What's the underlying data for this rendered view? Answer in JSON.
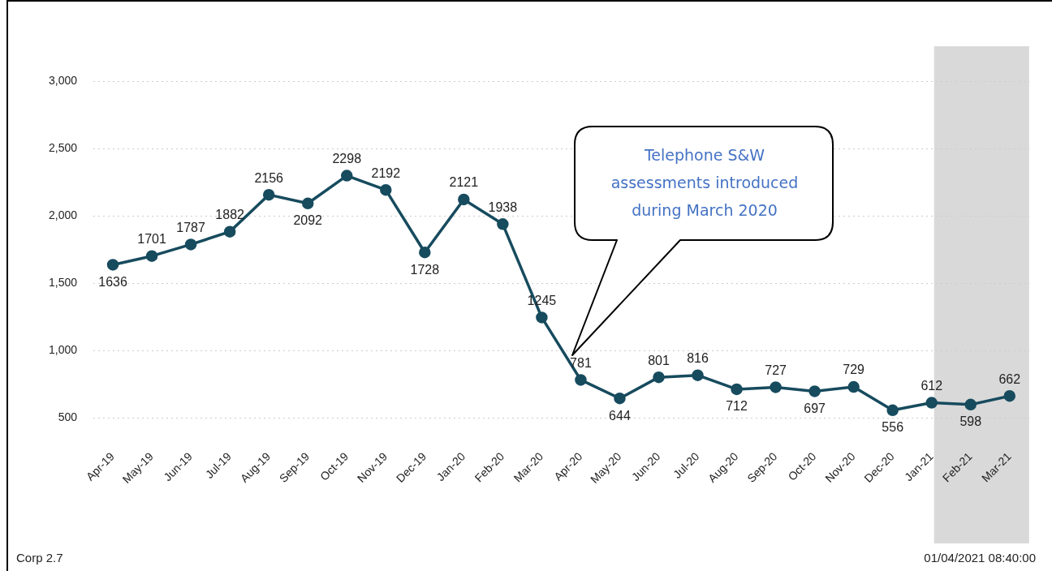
{
  "chart_data": {
    "type": "line",
    "categories": [
      "Apr-19",
      "May-19",
      "Jun-19",
      "Jul-19",
      "Aug-19",
      "Sep-19",
      "Oct-19",
      "Nov-19",
      "Dec-19",
      "Jan-20",
      "Feb-20",
      "Mar-20",
      "Apr-20",
      "May-20",
      "Jun-20",
      "Jul-20",
      "Aug-20",
      "Sep-20",
      "Oct-20",
      "Nov-20",
      "Dec-20",
      "Jan-21",
      "Feb-21",
      "Mar-21"
    ],
    "series": [
      {
        "color": "#174b5e",
        "values": [
          1636,
          1701,
          1787,
          1882,
          2156,
          2092,
          2298,
          2192,
          1728,
          2121,
          1938,
          1245,
          781,
          644,
          801,
          816,
          712,
          727,
          697,
          729,
          556,
          612,
          598,
          662
        ]
      }
    ],
    "ylim": [
      500,
      3000
    ],
    "yticks": [
      {
        "value": 500,
        "label": "500"
      },
      {
        "value": 1000,
        "label": "1,000"
      },
      {
        "value": 1500,
        "label": "1,500"
      },
      {
        "value": 2000,
        "label": "2,000"
      },
      {
        "value": 2500,
        "label": "2,500"
      },
      {
        "value": 3000,
        "label": "3,000"
      }
    ],
    "grid": "y",
    "legend": false,
    "marker": "circle",
    "line_style": "solid",
    "data_labels": true,
    "bands": [
      {
        "axis": "x",
        "from": "Jan-21",
        "to": "Mar-21",
        "color": "#d9d9d9"
      }
    ],
    "annotations": [
      "Telephone S&W assessments introduced during March 2020",
      "Corp 2.7",
      "01/04/2021 08:40:00"
    ]
  }
}
